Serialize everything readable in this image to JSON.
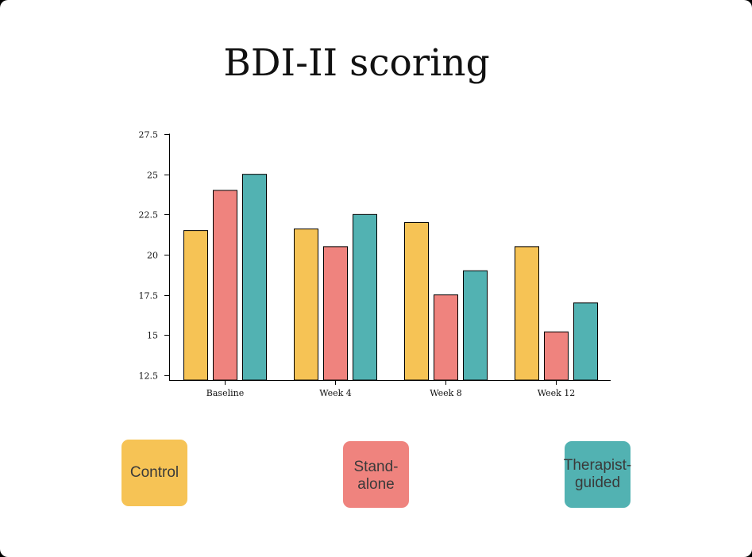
{
  "chart_data": {
    "type": "bar",
    "title": "BDI-II scoring",
    "categories": [
      "Baseline",
      "Week 4",
      "Week 8",
      "Week 12"
    ],
    "series": [
      {
        "name": "Control",
        "color": "#f6c355",
        "values": [
          21.5,
          21.6,
          22.0,
          20.5
        ]
      },
      {
        "name": "Stand-alone",
        "color": "#ef837e",
        "values": [
          24.0,
          20.5,
          17.5,
          15.2
        ]
      },
      {
        "name": "Therapist-guided",
        "color": "#52b2b2",
        "values": [
          25.0,
          22.5,
          19.0,
          17.0
        ]
      }
    ],
    "ylim": [
      12.3,
      27.5
    ],
    "yticks": [
      "12.5",
      "15",
      "17.5",
      "20",
      "22.5",
      "25",
      "27.5"
    ],
    "xlabel": "",
    "ylabel": "",
    "grid": false,
    "legend_placement": "bottom"
  },
  "legend": [
    {
      "label": "Control",
      "color": "#f6c355"
    },
    {
      "label": "Stand-alone",
      "color": "#ef837e"
    },
    {
      "label": "Therapist-\nguided",
      "color": "#52b2b2"
    }
  ]
}
